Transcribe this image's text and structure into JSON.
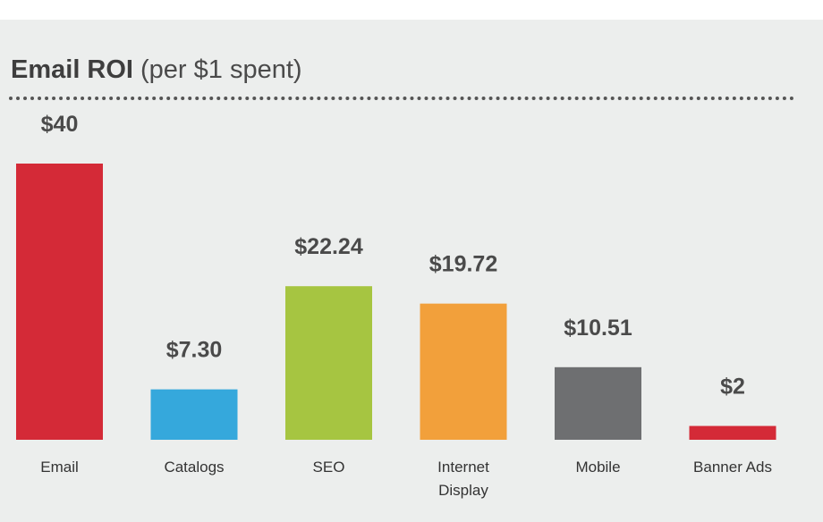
{
  "chart_data": {
    "type": "bar",
    "title": "Email ROI",
    "subtitle": "(per $1 spent)",
    "categories": [
      [
        "Email"
      ],
      [
        "Catalogs"
      ],
      [
        "SEO"
      ],
      [
        "Internet",
        "Display"
      ],
      [
        "Mobile"
      ],
      [
        "Banner Ads"
      ]
    ],
    "values": [
      40,
      7.3,
      22.24,
      19.72,
      10.51,
      2
    ],
    "value_labels": [
      "$40",
      "$7.30",
      "$22.24",
      "$19.72",
      "$10.51",
      "$2"
    ],
    "colors": [
      "#d42a37",
      "#35a8dc",
      "#a6c541",
      "#f2a03b",
      "#6e6f71",
      "#d42a37"
    ],
    "ylim": [
      0,
      40
    ],
    "grid": false,
    "legend": "none"
  }
}
